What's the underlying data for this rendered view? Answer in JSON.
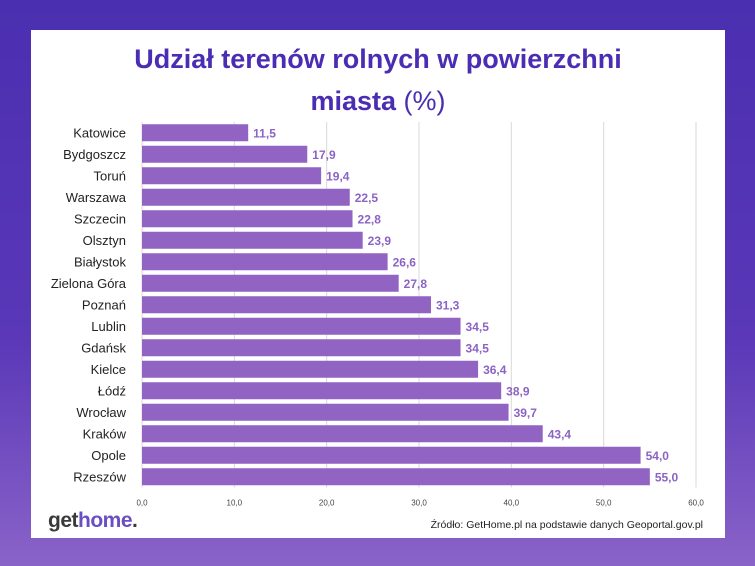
{
  "title_line1": "Udział terenów rolnych w powierzchni",
  "title_line2_main": "miasta",
  "title_line2_unit": "(%)",
  "brand": {
    "get": "get",
    "home": "home",
    "dot": "."
  },
  "source": "Źródło: GetHome.pl na podstawie danych Geoportal.gov.pl",
  "colors": {
    "bar": "#9164c4",
    "label": "#8b63c4",
    "title": "#4a2db3",
    "grid": "#d9d9d9"
  },
  "chart_data": {
    "type": "bar",
    "orientation": "horizontal",
    "categories": [
      "Katowice",
      "Bydgoszcz",
      "Toruń",
      "Warszawa",
      "Szczecin",
      "Olsztyn",
      "Białystok",
      "Zielona Góra",
      "Poznań",
      "Lublin",
      "Gdańsk",
      "Kielce",
      "Łódź",
      "Wrocław",
      "Kraków",
      "Opole",
      "Rzeszów"
    ],
    "values": [
      11.5,
      17.9,
      19.4,
      22.5,
      22.8,
      23.9,
      26.6,
      27.8,
      31.3,
      34.5,
      34.5,
      36.4,
      38.9,
      39.7,
      43.4,
      54.0,
      55.0
    ],
    "value_labels": [
      "11,5",
      "17,9",
      "19,4",
      "22,5",
      "22,8",
      "23,9",
      "26,6",
      "27,8",
      "31,3",
      "34,5",
      "34,5",
      "36,4",
      "38,9",
      "39,7",
      "43,4",
      "54,0",
      "55,0"
    ],
    "xlim": [
      0,
      60
    ],
    "x_ticks": [
      0,
      10,
      20,
      30,
      40,
      50,
      60
    ],
    "x_tick_labels": [
      "0,0",
      "10,0",
      "20,0",
      "30,0",
      "40,0",
      "50,0",
      "60,0"
    ],
    "grid": true
  }
}
